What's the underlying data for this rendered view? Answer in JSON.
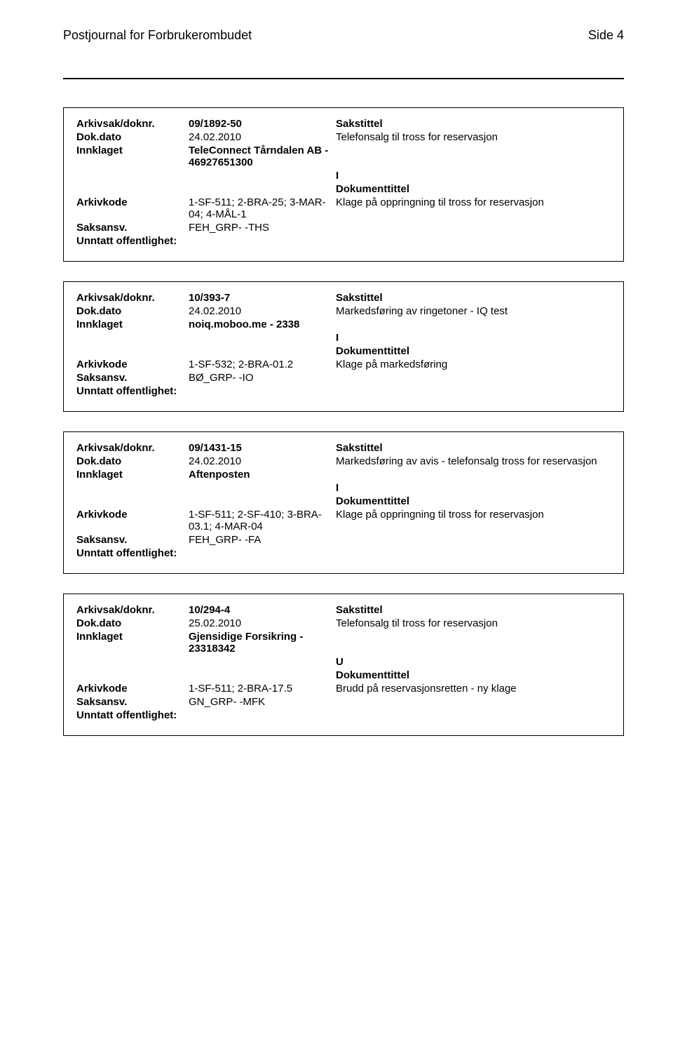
{
  "header": {
    "title": "Postjournal for Forbrukerombudet",
    "page_label": "Side 4"
  },
  "labels": {
    "arkivsak": "Arkivsak/doknr.",
    "dokdato": "Dok.dato",
    "innklaget": "Innklaget",
    "arkivkode": "Arkivkode",
    "saksansv": "Saksansv.",
    "unntatt": "Unntatt offentlighet:",
    "sakstittel": "Sakstittel",
    "dokumenttittel": "Dokumenttittel"
  },
  "cards": [
    {
      "doknr": "09/1892-50",
      "dokdato": "24.02.2010",
      "sakstittel_text": "Telefonsalg til tross for reservasjon",
      "innklaget": "TeleConnect Tårndalen AB - 46927651300",
      "io": "I",
      "arkivkode": "1-SF-511; 2-BRA-25; 3-MAR-04; 4-MÅL-1",
      "doktittel_text": "Klage på oppringning til tross for reservasjon",
      "saksansv": "FEH_GRP- -THS"
    },
    {
      "doknr": "10/393-7",
      "dokdato": "24.02.2010",
      "sakstittel_text": "Markedsføring av ringetoner - IQ test",
      "innklaget": "noiq.moboo.me - 2338",
      "io": "I",
      "arkivkode": "1-SF-532; 2-BRA-01.2",
      "doktittel_text": "Klage på markedsføring",
      "saksansv": "BØ_GRP- -IO"
    },
    {
      "doknr": "09/1431-15",
      "dokdato": "24.02.2010",
      "sakstittel_text": "Markedsføring av avis - telefonsalg tross for reservasjon",
      "innklaget": "Aftenposten",
      "io": "I",
      "arkivkode": "1-SF-511; 2-SF-410; 3-BRA-03.1; 4-MAR-04",
      "doktittel_text": "Klage på oppringning til tross for reservasjon",
      "saksansv": "FEH_GRP- -FA"
    },
    {
      "doknr": "10/294-4",
      "dokdato": "25.02.2010",
      "sakstittel_text": "Telefonsalg til tross for reservasjon",
      "innklaget": "Gjensidige Forsikring - 23318342",
      "io": "U",
      "arkivkode": "1-SF-511; 2-BRA-17.5",
      "doktittel_text": "Brudd på reservasjonsretten - ny klage",
      "saksansv": "GN_GRP- -MFK"
    }
  ]
}
